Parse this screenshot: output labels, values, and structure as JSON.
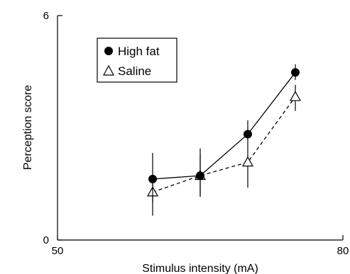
{
  "chart_data": {
    "type": "line",
    "title": "",
    "xlabel": "Stimulus intensity (mA)",
    "ylabel": "Perception score",
    "xlim": [
      50,
      80
    ],
    "ylim": [
      0,
      6
    ],
    "x_ticks": [
      "50",
      "80"
    ],
    "y_ticks": [
      "0",
      "6"
    ],
    "grid": false,
    "legend_position": "top-left",
    "series": [
      {
        "name": "High fat",
        "marker": "filled-circle",
        "line_style": "solid",
        "color": "#000000",
        "points": [
          {
            "x": 60,
            "y": 1.63,
            "err_low": 1.0,
            "err_high": 2.33
          },
          {
            "x": 65,
            "y": 1.72,
            "err_low": 1.15,
            "err_high": 2.45
          },
          {
            "x": 70,
            "y": 2.83,
            "err_low": 2.45,
            "err_high": 3.2
          },
          {
            "x": 75,
            "y": 4.48,
            "err_low": 4.28,
            "err_high": 4.7
          }
        ]
      },
      {
        "name": "Saline",
        "marker": "open-triangle",
        "line_style": "dashed",
        "color": "#000000",
        "points": [
          {
            "x": 60,
            "y": 1.28,
            "err_low": 0.65,
            "err_high": 1.63
          },
          {
            "x": 65,
            "y": 1.72,
            "err_low": 1.2,
            "err_high": 2.3
          },
          {
            "x": 70,
            "y": 2.08,
            "err_low": 1.4,
            "err_high": 2.45
          },
          {
            "x": 75,
            "y": 3.83,
            "err_low": 3.45,
            "err_high": 4.15
          }
        ]
      }
    ]
  }
}
